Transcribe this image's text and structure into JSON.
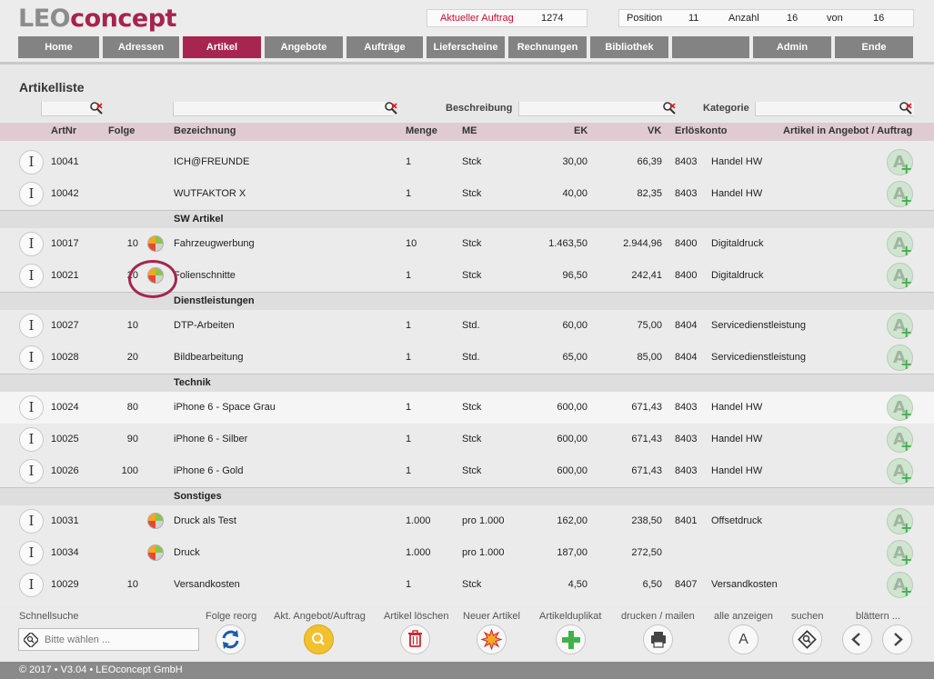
{
  "logo": {
    "leo": "LEO",
    "concept": "concept"
  },
  "order_info": {
    "label": "Aktueller Auftrag",
    "number": "1274"
  },
  "position_info": {
    "position_label": "Position",
    "position_value": "11",
    "count_label": "Anzahl",
    "count_value": "16",
    "of_label": "von",
    "of_value": "16"
  },
  "nav": [
    "Home",
    "Adressen",
    "Artikel",
    "Angebote",
    "Aufträge",
    "Lieferscheine",
    "Rechnungen",
    "Bibliothek",
    "",
    "Admin",
    "Ende"
  ],
  "nav_active": "Artikel",
  "page_title": "Artikelliste",
  "filters": {
    "beschreibung_label": "Beschreibung",
    "kategorie_label": "Kategorie"
  },
  "columns": {
    "artnr": "ArtNr",
    "folge": "Folge",
    "bezeichnung": "Bezeichnung",
    "menge": "Menge",
    "me": "ME",
    "ek": "EK",
    "vk": "VK",
    "erloeskonto": "Erlöskonto",
    "in_auftrag": "Artikel in Angebot / Auftrag"
  },
  "rows": [
    {
      "artnr": "10041",
      "folge": "",
      "pie": false,
      "bez": "ICH@FREUNDE",
      "menge": "1",
      "me": "Stck",
      "ek": "30,00",
      "vk": "66,39",
      "konto": "8403",
      "kat": "Handel HW"
    },
    {
      "artnr": "10042",
      "folge": "",
      "pie": false,
      "bez": "WUTFAKTOR X",
      "menge": "1",
      "me": "Stck",
      "ek": "40,00",
      "vk": "82,35",
      "konto": "8403",
      "kat": "Handel HW"
    },
    {
      "group": "SW Artikel"
    },
    {
      "artnr": "10017",
      "folge": "10",
      "pie": true,
      "bez": "Fahrzeugwerbung",
      "menge": "10",
      "me": "Stck",
      "ek": "1.463,50",
      "vk": "2.944,96",
      "konto": "8400",
      "kat": "Digitaldruck"
    },
    {
      "artnr": "10021",
      "folge": "20",
      "pie": true,
      "bez": "Folienschnitte",
      "menge": "1",
      "me": "Stck",
      "ek": "96,50",
      "vk": "242,41",
      "konto": "8400",
      "kat": "Digitaldruck"
    },
    {
      "group": "Dienstleistungen"
    },
    {
      "artnr": "10027",
      "folge": "10",
      "pie": false,
      "bez": "DTP-Arbeiten",
      "menge": "1",
      "me": "Std.",
      "ek": "60,00",
      "vk": "75,00",
      "konto": "8404",
      "kat": "Servicedienstleistung"
    },
    {
      "artnr": "10028",
      "folge": "20",
      "pie": false,
      "bez": "Bildbearbeitung",
      "menge": "1",
      "me": "Std.",
      "ek": "65,00",
      "vk": "85,00",
      "konto": "8404",
      "kat": "Servicedienstleistung"
    },
    {
      "group": "Technik"
    },
    {
      "artnr": "10024",
      "folge": "80",
      "pie": false,
      "bez": "iPhone 6 - Space Grau",
      "menge": "1",
      "me": "Stck",
      "ek": "600,00",
      "vk": "671,43",
      "konto": "8403",
      "kat": "Handel HW",
      "highlight": true
    },
    {
      "artnr": "10025",
      "folge": "90",
      "pie": false,
      "bez": "iPhone 6 - Silber",
      "menge": "1",
      "me": "Stck",
      "ek": "600,00",
      "vk": "671,43",
      "konto": "8403",
      "kat": "Handel HW"
    },
    {
      "artnr": "10026",
      "folge": "100",
      "pie": false,
      "bez": "iPhone 6 - Gold",
      "menge": "1",
      "me": "Stck",
      "ek": "600,00",
      "vk": "671,43",
      "konto": "8403",
      "kat": "Handel HW"
    },
    {
      "group": "Sonstiges"
    },
    {
      "artnr": "10031",
      "folge": "",
      "pie": true,
      "bez": "Druck als Test",
      "menge": "1.000",
      "me": "pro 1.000",
      "ek": "162,00",
      "vk": "238,50",
      "konto": "8401",
      "kat": "Offsetdruck"
    },
    {
      "artnr": "10034",
      "folge": "",
      "pie": true,
      "bez": "Druck",
      "menge": "1.000",
      "me": "pro 1.000",
      "ek": "187,00",
      "vk": "272,50",
      "konto": "",
      "kat": ""
    },
    {
      "artnr": "10029",
      "folge": "10",
      "pie": false,
      "bez": "Versandkosten",
      "menge": "1",
      "me": "Stck",
      "ek": "4,50",
      "vk": "6,50",
      "konto": "8407",
      "kat": "Versandkosten"
    }
  ],
  "row_icon_letter": "I",
  "toolbar": {
    "schnellsuche": "Schnellsuche",
    "search_placeholder": "Bitte wählen ...",
    "folge_reorg": "Folge reorg",
    "akt_angebot": "Akt. Angebot/Auftrag",
    "loeschen": "Artikel löschen",
    "neu": "Neuer Artikel",
    "duplikat": "Artikelduplikat",
    "drucken": "drucken / mailen",
    "alle": "alle anzeigen",
    "alle_letter": "A",
    "suchen": "suchen",
    "blaettern": "blättern ..."
  },
  "footer": "© 2017 • V3.04 • LEOconcept GmbH",
  "colors": {
    "accent": "#a72650",
    "nav": "#838383",
    "header_row": "#dfcbd1"
  }
}
